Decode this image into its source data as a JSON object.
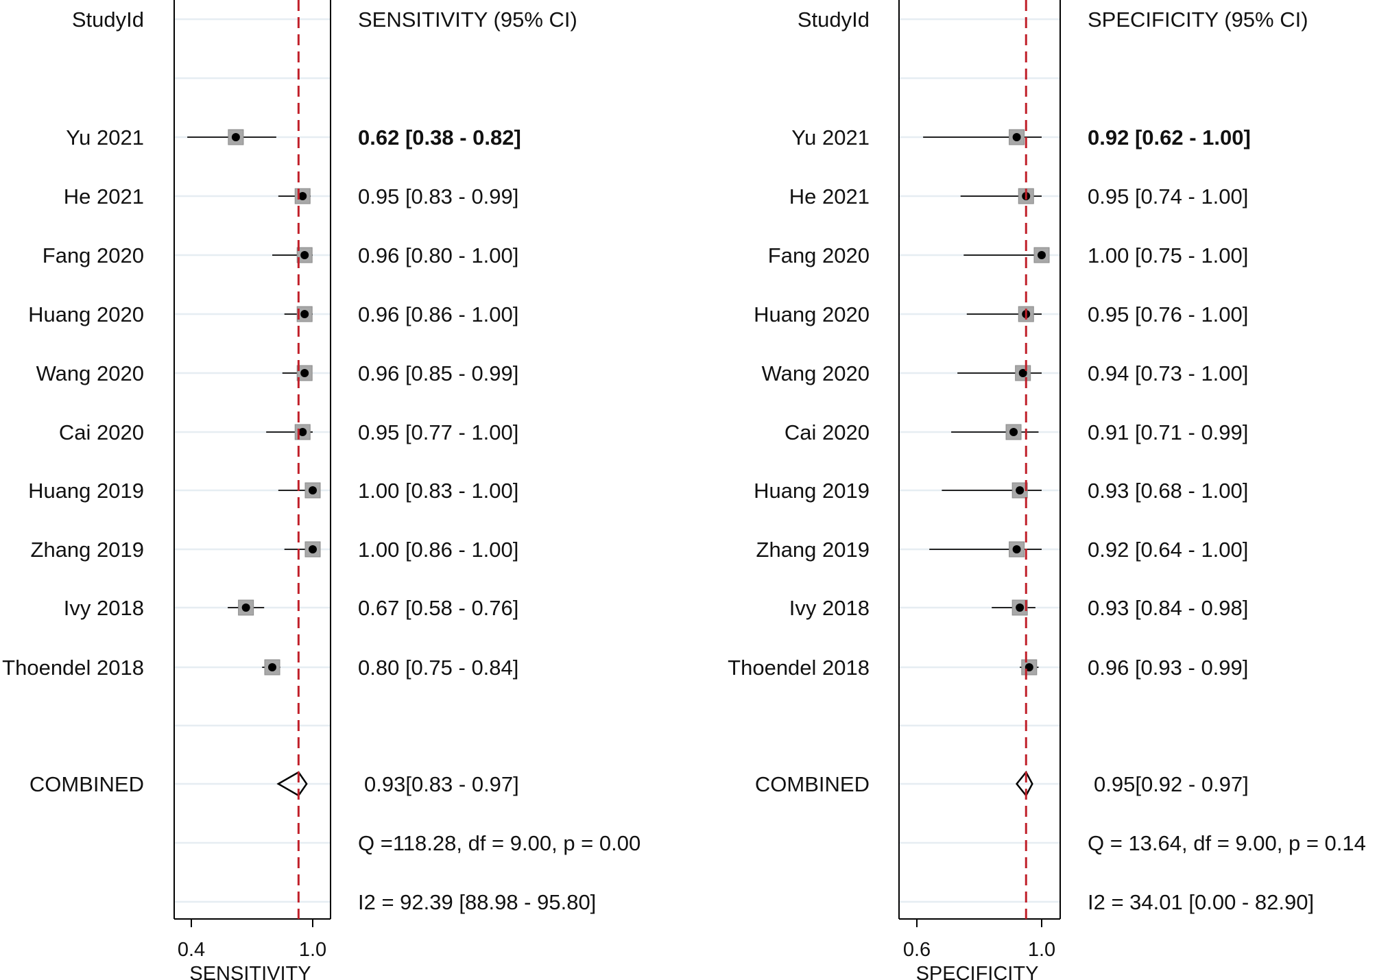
{
  "chart_data": [
    {
      "type": "forest",
      "panel": "sensitivity",
      "study_header": "StudyId",
      "estimate_header": "SENSITIVITY (95% CI)",
      "xlabel": "SENSITIVITY",
      "xlim": [
        0.4,
        1.0
      ],
      "ticks": [
        "0.4",
        "1.0"
      ],
      "tick_values": [
        0.4,
        1.0
      ],
      "combined_line": 0.93,
      "studies": [
        {
          "name": "Yu 2021",
          "est": 0.62,
          "lo": 0.38,
          "hi": 0.82,
          "label": "0.62 [0.38 - 0.82]"
        },
        {
          "name": "He 2021",
          "est": 0.95,
          "lo": 0.83,
          "hi": 0.99,
          "label": "0.95 [0.83 - 0.99]"
        },
        {
          "name": "Fang 2020",
          "est": 0.96,
          "lo": 0.8,
          "hi": 1.0,
          "label": "0.96 [0.80 - 1.00]"
        },
        {
          "name": "Huang 2020",
          "est": 0.96,
          "lo": 0.86,
          "hi": 1.0,
          "label": "0.96 [0.86 - 1.00]"
        },
        {
          "name": "Wang 2020",
          "est": 0.96,
          "lo": 0.85,
          "hi": 0.99,
          "label": "0.96 [0.85 - 0.99]"
        },
        {
          "name": "Cai 2020",
          "est": 0.95,
          "lo": 0.77,
          "hi": 1.0,
          "label": "0.95 [0.77 - 1.00]"
        },
        {
          "name": "Huang 2019",
          "est": 1.0,
          "lo": 0.83,
          "hi": 1.0,
          "label": "1.00 [0.83 - 1.00]"
        },
        {
          "name": "Zhang 2019",
          "est": 1.0,
          "lo": 0.86,
          "hi": 1.0,
          "label": "1.00 [0.86 - 1.00]"
        },
        {
          "name": "Ivy 2018",
          "est": 0.67,
          "lo": 0.58,
          "hi": 0.76,
          "label": "0.67 [0.58 - 0.76]"
        },
        {
          "name": "Thoendel 2018",
          "est": 0.8,
          "lo": 0.75,
          "hi": 0.84,
          "label": "0.80 [0.75 - 0.84]"
        }
      ],
      "combined": {
        "name": "COMBINED",
        "est": 0.93,
        "lo": 0.83,
        "hi": 0.97,
        "label": "0.93[0.83 - 0.97]"
      },
      "heterogeneity_q": "Q =118.28, df = 9.00, p =  0.00",
      "heterogeneity_i2": "I2 = 92.39 [88.98 - 95.80]"
    },
    {
      "type": "forest",
      "panel": "specificity",
      "study_header": "StudyId",
      "estimate_header": "SPECIFICITY (95% CI)",
      "xlabel": "SPECIFICITY",
      "xlim": [
        0.6,
        1.0
      ],
      "ticks": [
        "0.6",
        "1.0"
      ],
      "tick_values": [
        0.6,
        1.0
      ],
      "combined_line": 0.95,
      "studies": [
        {
          "name": "Yu 2021",
          "est": 0.92,
          "lo": 0.62,
          "hi": 1.0,
          "label": "0.92 [0.62 - 1.00]"
        },
        {
          "name": "He 2021",
          "est": 0.95,
          "lo": 0.74,
          "hi": 1.0,
          "label": "0.95 [0.74 - 1.00]"
        },
        {
          "name": "Fang 2020",
          "est": 1.0,
          "lo": 0.75,
          "hi": 1.0,
          "label": "1.00 [0.75 - 1.00]"
        },
        {
          "name": "Huang 2020",
          "est": 0.95,
          "lo": 0.76,
          "hi": 1.0,
          "label": "0.95 [0.76 - 1.00]"
        },
        {
          "name": "Wang 2020",
          "est": 0.94,
          "lo": 0.73,
          "hi": 1.0,
          "label": "0.94 [0.73 - 1.00]"
        },
        {
          "name": "Cai 2020",
          "est": 0.91,
          "lo": 0.71,
          "hi": 0.99,
          "label": "0.91 [0.71 - 0.99]"
        },
        {
          "name": "Huang 2019",
          "est": 0.93,
          "lo": 0.68,
          "hi": 1.0,
          "label": "0.93 [0.68 - 1.00]"
        },
        {
          "name": "Zhang 2019",
          "est": 0.92,
          "lo": 0.64,
          "hi": 1.0,
          "label": "0.92 [0.64 - 1.00]"
        },
        {
          "name": "Ivy 2018",
          "est": 0.93,
          "lo": 0.84,
          "hi": 0.98,
          "label": "0.93 [0.84 - 0.98]"
        },
        {
          "name": "Thoendel 2018",
          "est": 0.96,
          "lo": 0.93,
          "hi": 0.99,
          "label": "0.96 [0.93 - 0.99]"
        }
      ],
      "combined": {
        "name": "COMBINED",
        "est": 0.95,
        "lo": 0.92,
        "hi": 0.97,
        "label": "0.95[0.92 - 0.97]"
      },
      "heterogeneity_q": "Q = 13.64, df = 9.00, p =  0.14",
      "heterogeneity_i2": "I2 = 34.01 [0.00 - 82.90]"
    }
  ],
  "colors": {
    "reference_line": "#c0202a",
    "marker_box": "#a8a8a8",
    "marker_box_edge": "#8a8a8a",
    "point": "#000000",
    "ci_line": "#222222",
    "gridline": "#e6edf2",
    "text": "#111111"
  }
}
